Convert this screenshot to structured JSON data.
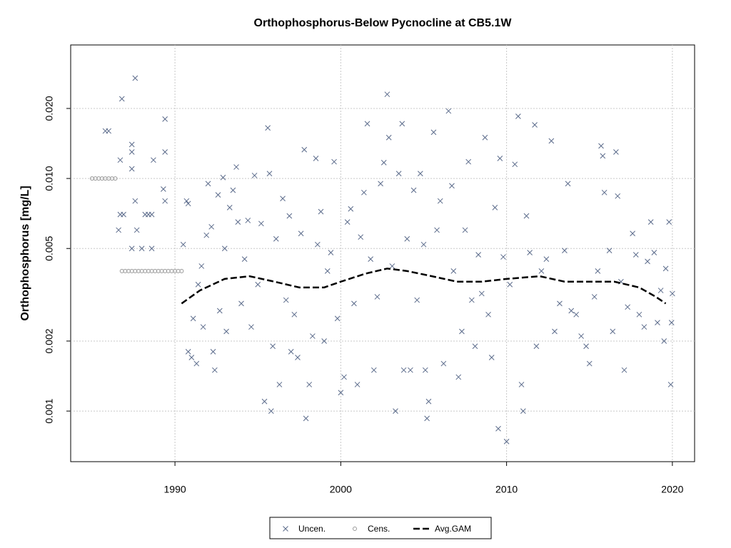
{
  "chart_data": {
    "type": "scatter",
    "title": "Orthophosphorus-Below Pycnocline at CB5.1W",
    "y_label": "Orthophosphorus [mg/L]",
    "ylog": true,
    "grid": true,
    "legend_position": "bottom",
    "xlim": [
      1983.71,
      2021.34
    ],
    "xticks": [
      1990,
      2000,
      2010,
      2020
    ],
    "ylim": [
      0.000606,
      0.0375
    ],
    "yticks": [
      0.001,
      0.002,
      0.005,
      {
        "value": 0.01,
        "label": "0.010"
      },
      {
        "value": 0.02,
        "label": "0.020"
      }
    ],
    "series": [
      {
        "name": "Uncen.",
        "color": "#5a6a8a",
        "marker": "x",
        "x": [
          1985.8,
          1986.0,
          1986.8,
          1986.7,
          1986.6,
          1986.9,
          1986.7,
          1987.6,
          1987.4,
          1987.4,
          1987.4,
          1987.6,
          1987.7,
          1987.4,
          1988.0,
          1988.2,
          1988.4,
          1988.6,
          1988.6,
          1988.7,
          1989.4,
          1989.4,
          1989.3,
          1989.4,
          1990.5,
          1990.7,
          1990.8,
          1990.8,
          1991.0,
          1991.1,
          1991.3,
          1991.4,
          1991.6,
          1991.7,
          1991.9,
          1992.0,
          1992.2,
          1992.3,
          1992.4,
          1992.6,
          1992.7,
          1992.9,
          1993.0,
          1993.1,
          1993.3,
          1993.5,
          1993.7,
          1993.8,
          1994.0,
          1994.2,
          1994.4,
          1994.6,
          1994.8,
          1995.0,
          1995.2,
          1995.4,
          1995.6,
          1995.7,
          1995.8,
          1995.9,
          1996.1,
          1996.3,
          1996.5,
          1996.7,
          1996.9,
          1997.0,
          1997.2,
          1997.4,
          1997.6,
          1997.8,
          1997.9,
          1998.1,
          1998.3,
          1998.5,
          1998.6,
          1998.8,
          1999.0,
          1999.2,
          1999.4,
          1999.6,
          1999.8,
          2000.0,
          2000.2,
          2000.4,
          2000.6,
          2000.8,
          2001.0,
          2001.2,
          2001.4,
          2001.6,
          2001.8,
          2002.0,
          2002.2,
          2002.4,
          2002.6,
          2002.8,
          2002.9,
          2003.1,
          2003.3,
          2003.5,
          2003.7,
          2003.8,
          2004.0,
          2004.2,
          2004.4,
          2004.6,
          2004.8,
          2005.0,
          2005.1,
          2005.2,
          2005.3,
          2005.6,
          2005.8,
          2006.0,
          2006.2,
          2006.5,
          2006.7,
          2006.8,
          2007.1,
          2007.3,
          2007.5,
          2007.7,
          2007.9,
          2008.1,
          2008.3,
          2008.5,
          2008.7,
          2008.9,
          2009.1,
          2009.3,
          2009.5,
          2009.6,
          2009.8,
          2010.0,
          2010.2,
          2010.5,
          2010.7,
          2010.9,
          2011.0,
          2011.2,
          2011.4,
          2011.7,
          2011.8,
          2012.1,
          2012.4,
          2012.7,
          2012.9,
          2013.2,
          2013.5,
          2013.7,
          2013.9,
          2014.2,
          2014.5,
          2014.8,
          2015.0,
          2015.3,
          2015.5,
          2015.7,
          2015.8,
          2015.9,
          2016.2,
          2016.4,
          2016.6,
          2016.7,
          2016.9,
          2017.1,
          2017.3,
          2017.6,
          2017.8,
          2018.0,
          2018.3,
          2018.5,
          2018.7,
          2018.9,
          2019.1,
          2019.3,
          2019.5,
          2019.6,
          2019.8,
          2019.9,
          2019.95,
          2020.0
        ],
        "values": [
          0.016,
          0.016,
          0.022,
          0.007,
          0.006,
          0.007,
          0.012,
          0.027,
          0.014,
          0.013,
          0.011,
          0.008,
          0.006,
          0.005,
          0.005,
          0.007,
          0.007,
          0.007,
          0.005,
          0.012,
          0.018,
          0.013,
          0.009,
          0.008,
          0.0052,
          0.008,
          0.0078,
          0.0018,
          0.0017,
          0.0025,
          0.0016,
          0.0035,
          0.0042,
          0.0023,
          0.0057,
          0.0095,
          0.0062,
          0.0018,
          0.0015,
          0.0085,
          0.0027,
          0.0101,
          0.005,
          0.0022,
          0.0075,
          0.0089,
          0.0112,
          0.0065,
          0.0029,
          0.0045,
          0.0066,
          0.0023,
          0.0103,
          0.0035,
          0.0064,
          0.0011,
          0.0165,
          0.0105,
          0.001,
          0.0019,
          0.0055,
          0.0013,
          0.0082,
          0.003,
          0.0069,
          0.0018,
          0.0026,
          0.0017,
          0.0058,
          0.0133,
          0.00093,
          0.0013,
          0.0021,
          0.0122,
          0.0052,
          0.0072,
          0.002,
          0.004,
          0.0048,
          0.0118,
          0.0025,
          0.0012,
          0.0014,
          0.0065,
          0.0074,
          0.0029,
          0.0013,
          0.0056,
          0.0087,
          0.0172,
          0.0045,
          0.0015,
          0.0031,
          0.0095,
          0.0117,
          0.023,
          0.015,
          0.0042,
          0.001,
          0.0105,
          0.0172,
          0.0015,
          0.0055,
          0.0015,
          0.0089,
          0.003,
          0.0105,
          0.0052,
          0.0015,
          0.00093,
          0.0011,
          0.0158,
          0.006,
          0.008,
          0.0016,
          0.0195,
          0.0093,
          0.004,
          0.0014,
          0.0022,
          0.006,
          0.0118,
          0.003,
          0.0019,
          0.0047,
          0.0032,
          0.015,
          0.0026,
          0.0017,
          0.0075,
          0.00084,
          0.0122,
          0.0046,
          0.00074,
          0.0035,
          0.0115,
          0.0185,
          0.0013,
          0.001,
          0.0069,
          0.0048,
          0.017,
          0.0019,
          0.004,
          0.0045,
          0.0145,
          0.0022,
          0.0029,
          0.0049,
          0.0095,
          0.0027,
          0.0026,
          0.0021,
          0.0019,
          0.0016,
          0.0031,
          0.004,
          0.0138,
          0.0125,
          0.0087,
          0.0049,
          0.0022,
          0.013,
          0.0084,
          0.0036,
          0.0015,
          0.0028,
          0.0058,
          0.0047,
          0.0026,
          0.0023,
          0.0044,
          0.0065,
          0.0048,
          0.0024,
          0.0033,
          0.002,
          0.0041,
          0.0065,
          0.0013,
          0.0024,
          0.0032
        ]
      },
      {
        "name": "Cens.",
        "color": "#999999",
        "marker": "circle",
        "x": [
          1985.0,
          1985.2,
          1985.4,
          1985.6,
          1985.8,
          1986.0,
          1986.2,
          1986.4,
          1986.8,
          1987.0,
          1987.2,
          1987.4,
          1987.6,
          1987.8,
          1988.0,
          1988.2,
          1988.4,
          1988.6,
          1988.8,
          1989.0,
          1989.2,
          1989.4,
          1989.6,
          1989.8,
          1990.0,
          1990.2,
          1990.4
        ],
        "values": [
          0.01,
          0.01,
          0.01,
          0.01,
          0.01,
          0.01,
          0.01,
          0.01,
          0.004,
          0.004,
          0.004,
          0.004,
          0.004,
          0.004,
          0.004,
          0.004,
          0.004,
          0.004,
          0.004,
          0.004,
          0.004,
          0.004,
          0.004,
          0.004,
          0.004,
          0.004,
          0.004
        ]
      },
      {
        "name": "Avg.GAM",
        "color": "#000000",
        "marker": "line",
        "x": [
          1990.4,
          1991.5,
          1993.0,
          1994.5,
          1996.0,
          1997.5,
          1999.0,
          2000.0,
          2001.5,
          2002.8,
          2004.0,
          2005.5,
          2007.0,
          2008.5,
          2010.0,
          2012.0,
          2013.5,
          2015.0,
          2016.5,
          2018.0,
          2019.0,
          2019.6
        ],
        "values": [
          0.0029,
          0.0033,
          0.0037,
          0.0038,
          0.0036,
          0.0034,
          0.0034,
          0.0036,
          0.0039,
          0.0041,
          0.004,
          0.0038,
          0.0036,
          0.0036,
          0.0037,
          0.0038,
          0.0036,
          0.0036,
          0.0036,
          0.0034,
          0.0031,
          0.0029
        ]
      }
    ]
  }
}
